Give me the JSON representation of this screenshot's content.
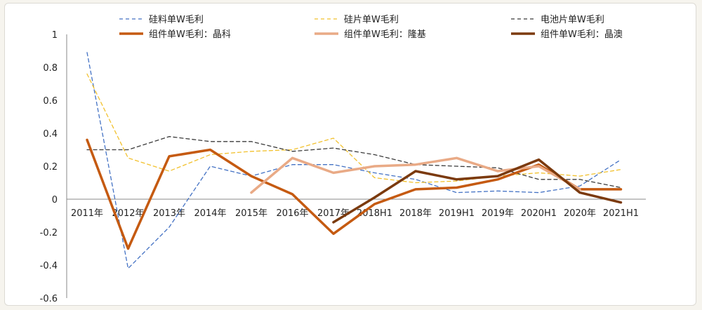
{
  "chart_data": {
    "type": "line",
    "categories": [
      "2011年",
      "2012年",
      "2013年",
      "2014年",
      "2015年",
      "2016年",
      "2017年",
      "2018H1",
      "2018年",
      "2019H1",
      "2019年",
      "2020H1",
      "2020年",
      "2021H1"
    ],
    "ylim": [
      -0.6,
      1.0
    ],
    "yticks": [
      "1",
      "0.8",
      "0.6",
      "0.4",
      "0.2",
      "0",
      "-0.2",
      "-0.4",
      "-0.6"
    ],
    "ytick_values": [
      1,
      0.8,
      0.6,
      0.4,
      0.2,
      0,
      -0.2,
      -0.4,
      -0.6
    ],
    "grid": false,
    "legend_position": "top",
    "series": [
      {
        "name": "硅料单W毛利",
        "color": "#4472c4",
        "style": "dashed",
        "width": 1.3,
        "values": [
          0.89,
          -0.42,
          -0.17,
          0.2,
          0.14,
          0.21,
          0.21,
          0.16,
          0.12,
          0.04,
          0.05,
          0.04,
          0.08,
          0.24
        ]
      },
      {
        "name": "硅片单W毛利",
        "color": "#f2c12e",
        "style": "dashed",
        "width": 1.3,
        "values": [
          0.76,
          0.25,
          0.17,
          0.27,
          0.29,
          0.3,
          0.37,
          0.13,
          0.1,
          0.11,
          0.14,
          0.16,
          0.14,
          0.18
        ]
      },
      {
        "name": "电池片单W毛利",
        "color": "#3b3b3b",
        "style": "dashed",
        "width": 1.3,
        "values": [
          0.3,
          0.3,
          0.38,
          0.35,
          0.35,
          0.29,
          0.31,
          0.27,
          0.21,
          0.2,
          0.19,
          0.12,
          0.12,
          0.07
        ]
      },
      {
        "name": "组件单W毛利：晶科",
        "color": "#c55a11",
        "style": "solid",
        "width": 3.5,
        "values": [
          0.36,
          -0.3,
          0.26,
          0.3,
          0.14,
          0.03,
          -0.21,
          -0.03,
          0.06,
          0.07,
          0.12,
          0.21,
          0.06,
          0.06
        ]
      },
      {
        "name": "组件单W毛利：隆基",
        "color": "#e9aa86",
        "style": "solid",
        "width": 3.5,
        "values": [
          null,
          null,
          null,
          null,
          0.04,
          0.25,
          0.16,
          0.2,
          0.21,
          0.25,
          0.17,
          0.2,
          0.06,
          null
        ]
      },
      {
        "name": "组件单W毛利：晶澳",
        "color": "#7b3a0e",
        "style": "solid",
        "width": 3.5,
        "values": [
          null,
          null,
          null,
          null,
          null,
          null,
          -0.14,
          0.01,
          0.17,
          0.12,
          0.14,
          0.24,
          0.04,
          -0.02
        ]
      }
    ]
  }
}
